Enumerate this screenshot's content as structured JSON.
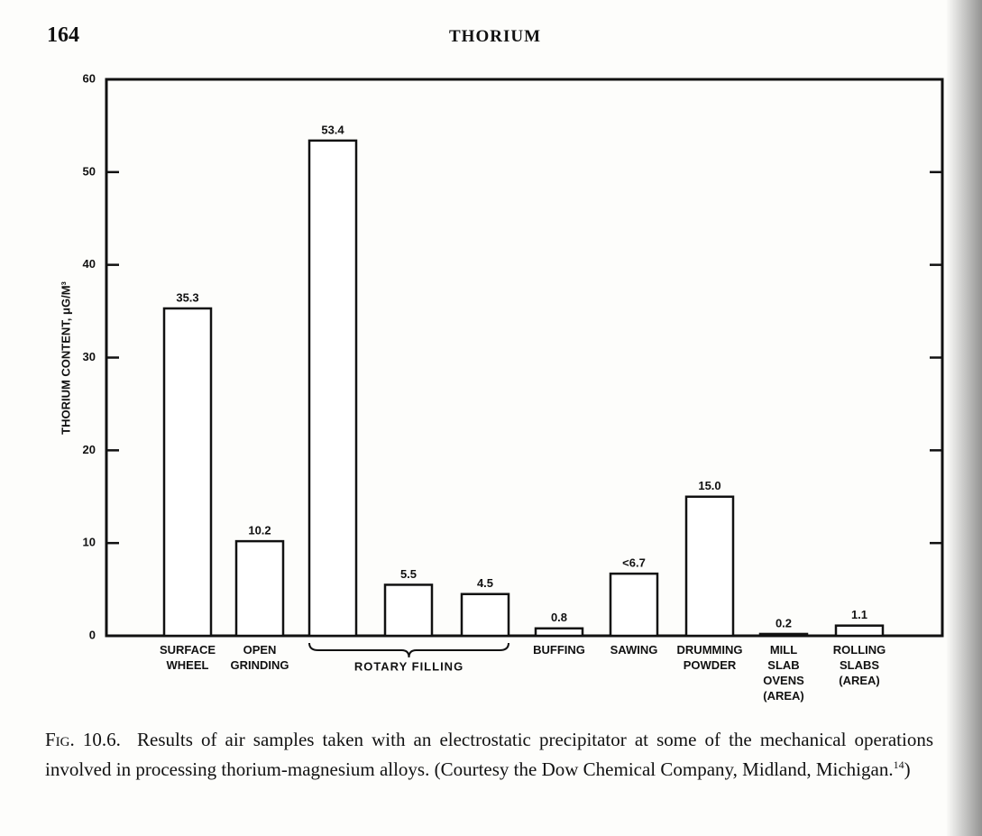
{
  "page_number": "164",
  "running_head": "THORIUM",
  "chart_data": {
    "type": "bar",
    "ylabel": "THORIUM CONTENT, μG/M³",
    "categories": [
      "SURFACE WHEEL",
      "OPEN GRINDING",
      null,
      null,
      null,
      "BUFFING",
      "SAWING",
      "DRUMMING POWDER",
      "MILL SLAB OVENS (AREA)",
      "ROLLING SLABS (AREA)"
    ],
    "values": [
      35.3,
      10.2,
      53.4,
      5.5,
      4.5,
      0.8,
      6.7,
      15.0,
      0.2,
      1.1
    ],
    "value_labels": [
      "35.3",
      "10.2",
      "53.4",
      "5.5",
      "4.5",
      "0.8",
      "<6.7",
      "15.0",
      "0.2",
      "1.1"
    ],
    "group_label": "ROTARY FILLING",
    "color": "#ffffff",
    "ylim": [
      0,
      60
    ],
    "yticks": [
      0,
      10,
      20,
      30,
      40,
      50,
      60
    ]
  },
  "caption": {
    "label": "Fig. 10.6.",
    "text": "Results of air samples taken with an electrostatic precipitator at some of the mechanical operations involved in processing thorium-magnesium alloys. (Courtesy the Dow Chemical Company, Midland, Michigan.",
    "ref": "14",
    "close": ")"
  }
}
